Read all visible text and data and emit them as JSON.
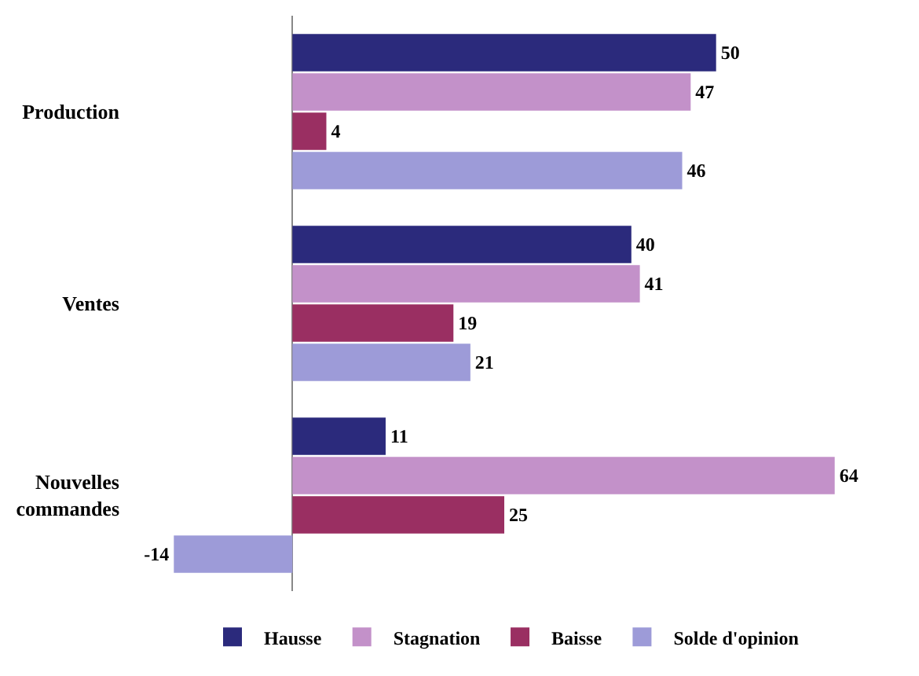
{
  "chart_data": {
    "type": "bar",
    "orientation": "horizontal",
    "categories": [
      "Production",
      "Ventes",
      "Nouvelles commandes"
    ],
    "series": [
      {
        "name": "Hausse",
        "color": "#2b2a7c",
        "values": [
          50,
          40,
          11
        ]
      },
      {
        "name": "Stagnation",
        "color": "#c391c9",
        "values": [
          47,
          41,
          64
        ]
      },
      {
        "name": "Baisse",
        "color": "#9a2f62",
        "values": [
          4,
          19,
          25
        ]
      },
      {
        "name": "Solde d'opinion",
        "color": "#9d9bd8",
        "values": [
          46,
          21,
          -14
        ]
      }
    ],
    "data_labels": true,
    "legend": "bottom"
  }
}
